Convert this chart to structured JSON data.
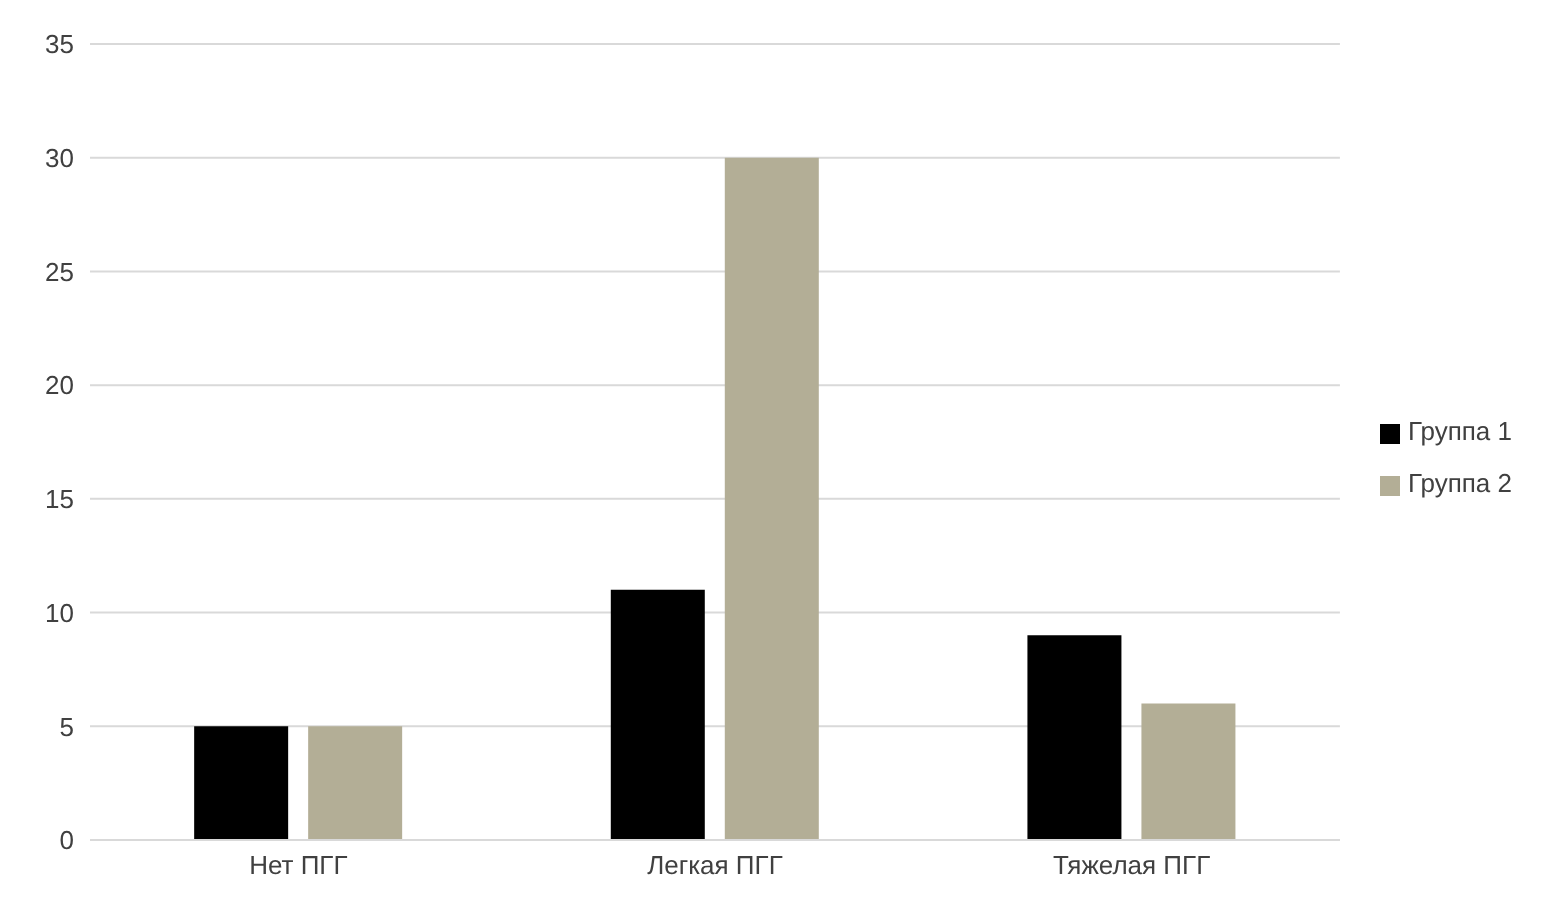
{
  "chart_data": {
    "type": "bar",
    "categories": [
      "Нет ПГГ",
      "Легкая ПГГ",
      "Тяжелая ПГГ"
    ],
    "series": [
      {
        "name": "Группа 1",
        "color": "#000000",
        "values": [
          5,
          11,
          9
        ]
      },
      {
        "name": "Группа 2",
        "color": "#b3ae96",
        "values": [
          5,
          30,
          6
        ]
      }
    ],
    "ylim": [
      0,
      35
    ],
    "yticks": [
      0,
      5,
      10,
      15,
      20,
      25,
      30,
      35
    ],
    "grid": "y",
    "legend": "right"
  }
}
